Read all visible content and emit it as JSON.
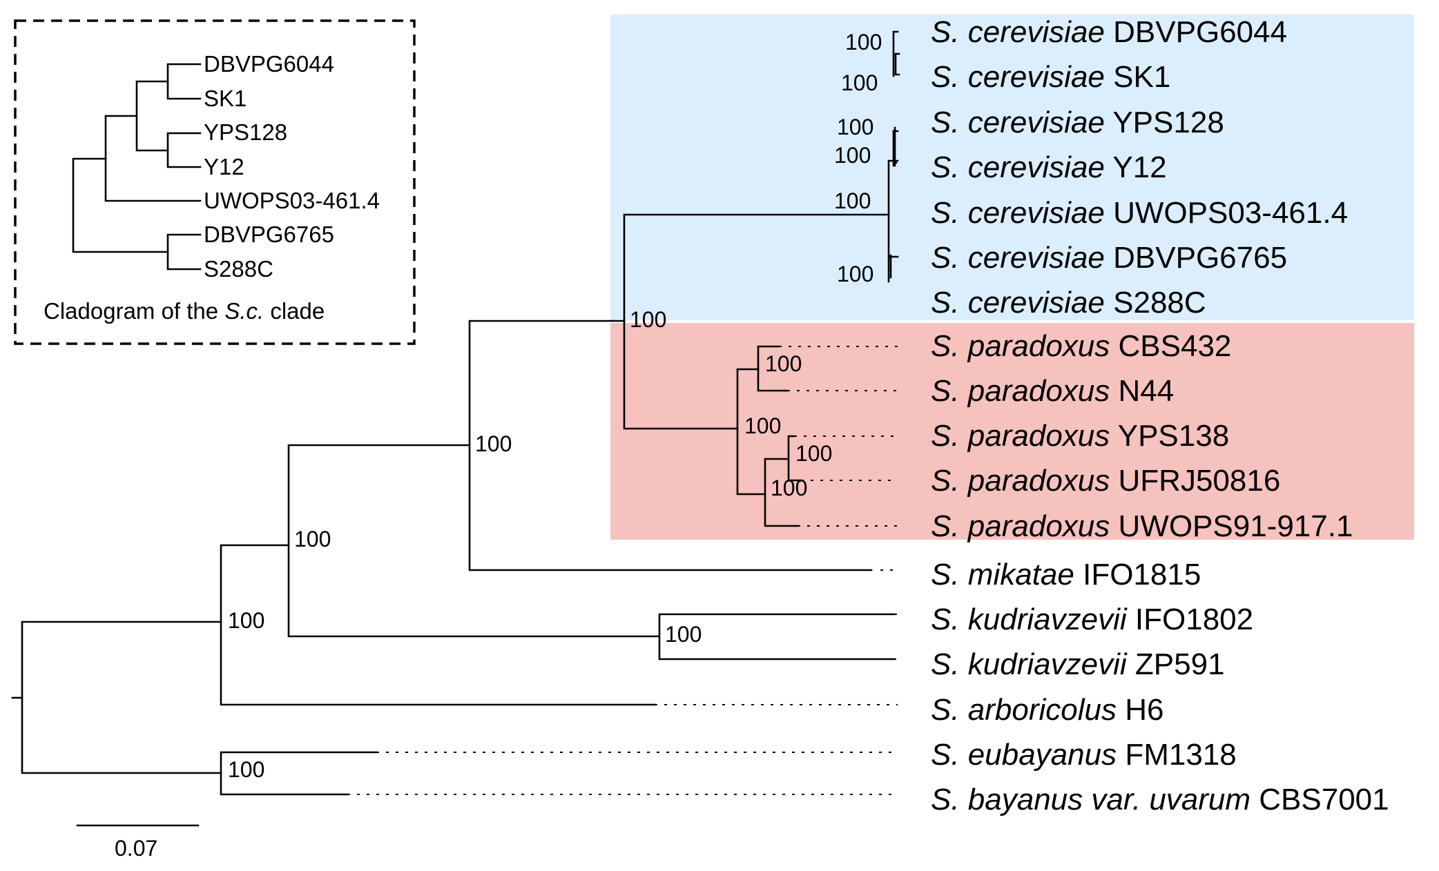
{
  "inset": {
    "leaves": [
      "DBVPG6044",
      "SK1",
      "YPS128",
      "Y12",
      "UWOPS03-461.4",
      "DBVPG6765",
      "S288C"
    ],
    "caption_prefix": "Cladogram of the ",
    "caption_italic": "S.c.",
    "caption_suffix": " clade"
  },
  "taxa": [
    {
      "species": "S. cerevisiae",
      "strain": "DBVPG6044"
    },
    {
      "species": "S. cerevisiae",
      "strain": "SK1"
    },
    {
      "species": "S. cerevisiae",
      "strain": "YPS128"
    },
    {
      "species": "S. cerevisiae",
      "strain": "Y12"
    },
    {
      "species": "S. cerevisiae",
      "strain": "UWOPS03-461.4"
    },
    {
      "species": "S. cerevisiae",
      "strain": "DBVPG6765"
    },
    {
      "species": "S. cerevisiae",
      "strain": "S288C"
    },
    {
      "species": "S. paradoxus",
      "strain": "CBS432"
    },
    {
      "species": "S. paradoxus",
      "strain": "N44"
    },
    {
      "species": "S. paradoxus",
      "strain": "YPS138"
    },
    {
      "species": "S. paradoxus",
      "strain": "UFRJ50816"
    },
    {
      "species": "S. paradoxus",
      "strain": "UWOPS91-917.1"
    },
    {
      "species": "S. mikatae",
      "strain": "IFO1815"
    },
    {
      "species": "S. kudriavzevii",
      "strain": "IFO1802"
    },
    {
      "species": "S. kudriavzevii",
      "strain": "ZP591"
    },
    {
      "species": "S. arboricolus",
      "strain": "H6"
    },
    {
      "species": "S. eubayanus",
      "strain": "FM1318"
    },
    {
      "species": "S. bayanus var. uvarum",
      "strain": "CBS7001"
    }
  ],
  "support": {
    "cer_1": "100",
    "cer_2": "100",
    "cer_3": "100",
    "cer_4": "100",
    "cer_5": "100",
    "cer_6": "100",
    "cer_par": "100",
    "par_a": "100",
    "par_b": "100",
    "par_c": "100",
    "par_d": "100",
    "mik": "100",
    "kud_node": "100",
    "kud": "100",
    "arb": "100",
    "eub": "100"
  },
  "scale_bar": "0.07",
  "colors": {
    "cerevisiae_bg": "#dbeefd",
    "paradoxus_bg": "#f6c2bd"
  }
}
